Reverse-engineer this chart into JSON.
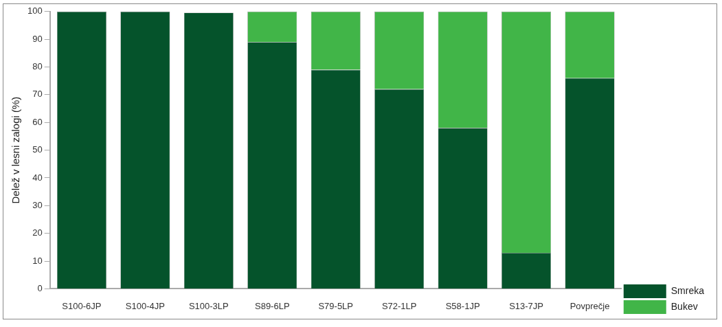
{
  "chart_data": {
    "type": "bar",
    "stacked": true,
    "ylabel": "Delež v lesni zalogi (%)",
    "categories": [
      "S100-6JP",
      "S100-4JP",
      "S100-3LP",
      "S89-6LP",
      "S79-5LP",
      "S72-1LP",
      "S58-1JP",
      "S13-7JP",
      "Povprečje"
    ],
    "series": [
      {
        "name": "Smreka",
        "color": "#05532b",
        "values": [
          100,
          100,
          99.6,
          89,
          79,
          72,
          58,
          13,
          76
        ]
      },
      {
        "name": "Bukev",
        "color": "#41b548",
        "values": [
          0,
          0,
          null,
          11,
          21,
          28,
          42,
          87,
          24
        ]
      }
    ],
    "ylim": [
      0,
      100
    ],
    "yticks": [
      0,
      10,
      20,
      30,
      40,
      50,
      60,
      70,
      80,
      90,
      100
    ],
    "grid": false,
    "legend": "bottom right"
  }
}
